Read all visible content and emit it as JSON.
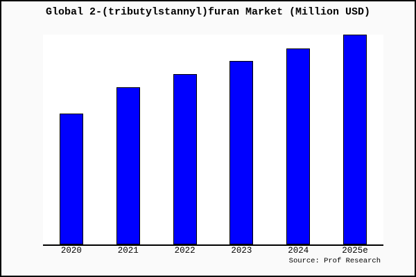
{
  "frame": {
    "background_color": "#fafafa",
    "border_color": "#000000"
  },
  "chart_data": {
    "type": "bar",
    "title": "Global 2-(tributylstannyl)furan Market (Million USD)",
    "categories": [
      "2020",
      "2021",
      "2022",
      "2023",
      "2024",
      "2025e"
    ],
    "values": [
      62.4,
      74.9,
      81.2,
      87.3,
      93.3,
      100
    ],
    "values_note": "no y-axis ticks or gridlines shown; values are relative bar heights as % of tallest bar",
    "xlabel": "",
    "ylabel": "",
    "ylim": [
      0,
      100
    ],
    "grid": false,
    "legend": "none",
    "bar_color": "#0000ff",
    "bar_edge_color": "#000000",
    "plot_background": "#ffffff",
    "axis_line_color": "#000000"
  },
  "source": {
    "label": "Source: Prof Research"
  }
}
